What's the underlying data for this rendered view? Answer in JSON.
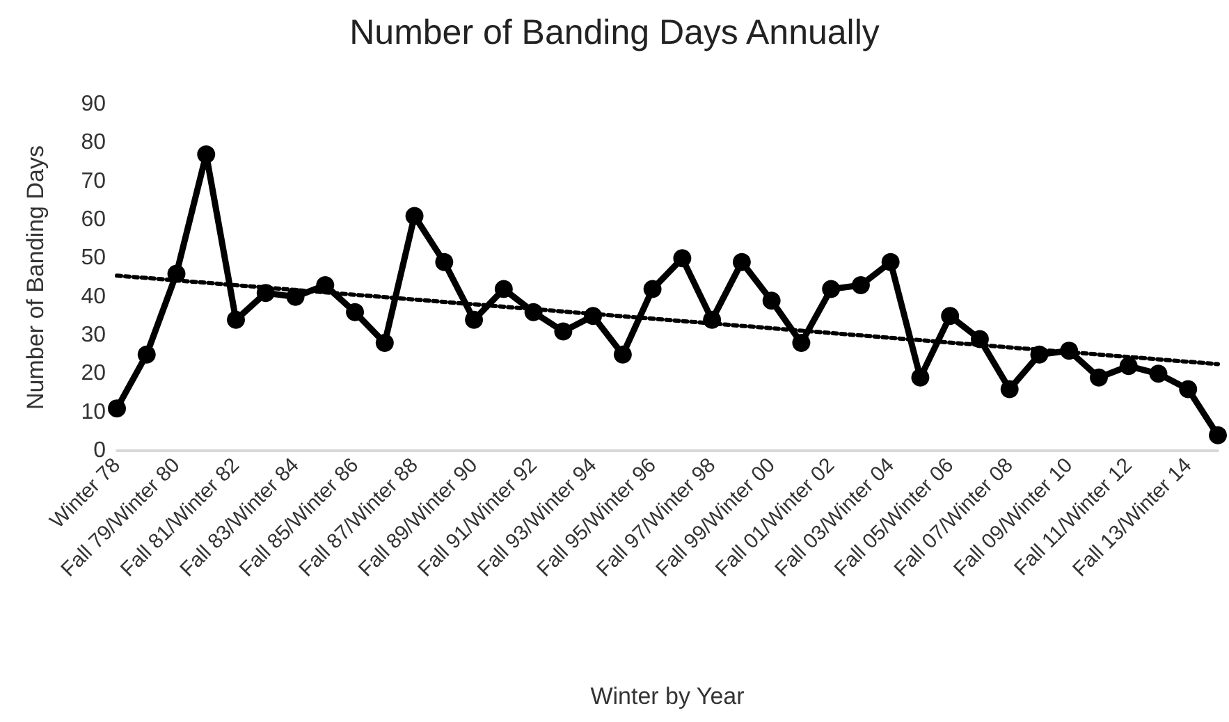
{
  "chart_data": {
    "type": "line",
    "title": "Number of Banding Days Annually",
    "xlabel": "Winter by Year",
    "ylabel": "Number of Banding Days",
    "categories": [
      "Winter 78",
      null,
      "Fall 79/Winter 80",
      null,
      "Fall 81/Winter 82",
      null,
      "Fall 83/Winter 84",
      null,
      "Fall 85/Winter 86",
      null,
      "Fall 87/Winter 88",
      null,
      "Fall 89/Winter 90",
      null,
      "Fall 91/Winter 92",
      null,
      "Fall 93/Winter 94",
      null,
      "Fall 95/Winter 96",
      null,
      "Fall 97/Winter 98",
      null,
      "Fall 99/Winter 00",
      null,
      "Fall 01/Winter 02",
      null,
      "Fall 03/Winter 04",
      null,
      "Fall 05/Winter 06",
      null,
      "Fall 07/Winter 08",
      null,
      "Fall 09/Winter 10",
      null,
      "Fall 11/Winter 12",
      null,
      "Fall 13/Winter 14",
      null
    ],
    "series": [
      {
        "color": "#000000",
        "marker": "circle",
        "line_style": "solid",
        "values": [
          11,
          25,
          46,
          77,
          34,
          41,
          40,
          43,
          36,
          28,
          61,
          49,
          34,
          42,
          36,
          31,
          35,
          25,
          42,
          50,
          34,
          49,
          39,
          28,
          42,
          43,
          49,
          19,
          35,
          29,
          16,
          25,
          26,
          19,
          22,
          20,
          16,
          4
        ]
      },
      {
        "color": "#000000",
        "marker": "none",
        "line_style": "dotted",
        "values": [
          45.5,
          null,
          null,
          null,
          null,
          null,
          null,
          null,
          null,
          null,
          null,
          null,
          null,
          null,
          null,
          null,
          null,
          null,
          null,
          null,
          null,
          null,
          null,
          null,
          null,
          null,
          null,
          null,
          null,
          null,
          null,
          null,
          null,
          null,
          null,
          null,
          null,
          22.5
        ]
      }
    ],
    "ylim": [
      0,
      90
    ],
    "yticks": [
      0,
      10,
      20,
      30,
      40,
      50,
      60,
      70,
      80,
      90
    ],
    "grid": false
  }
}
